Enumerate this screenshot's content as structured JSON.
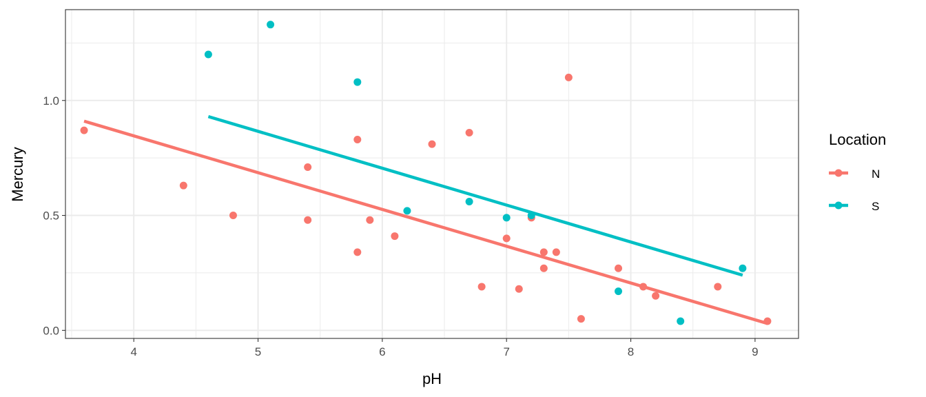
{
  "chart_data": {
    "type": "scatter",
    "xlabel": "pH",
    "ylabel": "Mercury",
    "xlim": [
      3.45,
      9.35
    ],
    "ylim": [
      -0.035,
      1.395
    ],
    "x_ticks": [
      4,
      5,
      6,
      7,
      8,
      9
    ],
    "x_tick_labels": [
      "4",
      "5",
      "6",
      "7",
      "8",
      "9"
    ],
    "y_ticks": [
      0,
      0.5,
      1.0
    ],
    "y_tick_labels": [
      "0.0",
      "0.5",
      "1.0"
    ],
    "grid": true,
    "legend": {
      "title": "Location",
      "position": "right"
    },
    "series": [
      {
        "name": "N",
        "color": "#F8766D",
        "points": [
          [
            3.6,
            0.87
          ],
          [
            4.4,
            0.63
          ],
          [
            4.8,
            0.5
          ],
          [
            5.4,
            0.71
          ],
          [
            5.4,
            0.48
          ],
          [
            5.8,
            0.83
          ],
          [
            5.8,
            0.34
          ],
          [
            5.9,
            0.48
          ],
          [
            6.1,
            0.41
          ],
          [
            6.4,
            0.81
          ],
          [
            6.7,
            0.86
          ],
          [
            6.8,
            0.19
          ],
          [
            7.0,
            0.4
          ],
          [
            7.1,
            0.18
          ],
          [
            7.2,
            0.49
          ],
          [
            7.3,
            0.34
          ],
          [
            7.3,
            0.27
          ],
          [
            7.4,
            0.34
          ],
          [
            7.5,
            1.1
          ],
          [
            7.6,
            0.05
          ],
          [
            7.9,
            0.27
          ],
          [
            8.1,
            0.19
          ],
          [
            8.2,
            0.15
          ],
          [
            8.7,
            0.19
          ],
          [
            9.1,
            0.04
          ]
        ],
        "fit_line": [
          [
            3.6,
            0.91
          ],
          [
            9.1,
            0.03
          ]
        ]
      },
      {
        "name": "S",
        "color": "#00BFC4",
        "points": [
          [
            4.6,
            1.2
          ],
          [
            5.1,
            1.33
          ],
          [
            5.8,
            1.08
          ],
          [
            6.2,
            0.52
          ],
          [
            6.7,
            0.56
          ],
          [
            7.0,
            0.49
          ],
          [
            7.2,
            0.5
          ],
          [
            7.9,
            0.17
          ],
          [
            8.4,
            0.04
          ],
          [
            8.9,
            0.27
          ]
        ],
        "fit_line": [
          [
            4.6,
            0.93
          ],
          [
            8.9,
            0.24
          ]
        ]
      }
    ]
  }
}
